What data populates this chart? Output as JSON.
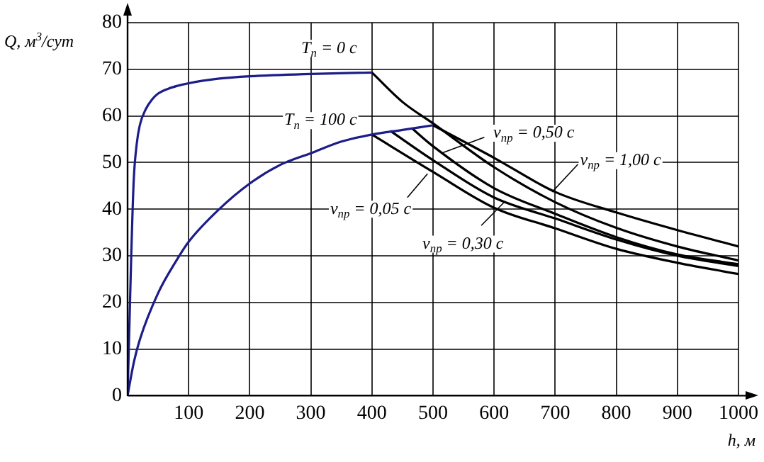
{
  "chart_data": {
    "type": "line",
    "xlabel": "h, м",
    "ylabel": "Q, м$^{3}$/сут",
    "xlim": [
      0,
      1000
    ],
    "ylim": [
      0,
      80
    ],
    "xticks": [
      {
        "value": 0,
        "label": null
      },
      100,
      200,
      300,
      400,
      500,
      600,
      700,
      800,
      900,
      1000
    ],
    "yticks": [
      0,
      10,
      20,
      30,
      40,
      50,
      60,
      70,
      80
    ],
    "grid": true,
    "marker": "none",
    "line_style": "solid",
    "series": [
      {
        "name": "T$_{п}$ = 0 с",
        "color": "#1c1c8a",
        "x": [
          0,
          3,
          6,
          10,
          15,
          20,
          30,
          40,
          50,
          70,
          100,
          150,
          200,
          300,
          400
        ],
        "values": [
          0,
          15,
          30,
          46,
          54,
          58,
          61.5,
          63.5,
          64.8,
          66,
          67,
          68,
          68.5,
          69,
          69.3
        ]
      },
      {
        "name": "T$_{п}$ = 100 с",
        "color": "#1c1c8a",
        "x": [
          0,
          10,
          20,
          50,
          80,
          100,
          150,
          200,
          250,
          300,
          350,
          400,
          450,
          500
        ],
        "values": [
          0,
          7,
          12,
          22,
          29,
          33,
          40,
          45.5,
          49.5,
          52,
          54.5,
          56,
          57,
          58
        ]
      },
      {
        "color": "#000000",
        "x": [
          400,
          450,
          500,
          600,
          700,
          800,
          900,
          1000
        ],
        "values": [
          69.3,
          63,
          58.4,
          49,
          41.5,
          36,
          32,
          29
        ]
      },
      {
        "color": "#000000",
        "x": [
          400,
          500,
          600,
          700,
          800,
          900,
          1000
        ],
        "values": [
          56,
          48,
          40.3,
          35.9,
          31.5,
          28.5,
          26.1
        ]
      },
      {
        "color": "#000000",
        "x": [
          430,
          500,
          600,
          700,
          800,
          900,
          1000
        ],
        "values": [
          56.8,
          50.5,
          42.5,
          38,
          33.5,
          30,
          27.8
        ]
      },
      {
        "color": "#000000",
        "x": [
          465,
          500,
          600,
          700,
          800,
          900,
          1000
        ],
        "values": [
          57.4,
          53.5,
          44.5,
          39,
          34,
          30.3,
          28.2
        ]
      },
      {
        "color": "#000000",
        "x": [
          500,
          600,
          700,
          800,
          900,
          1000
        ],
        "values": [
          58,
          51,
          43.7,
          39.3,
          35.5,
          32
        ]
      }
    ],
    "annotations": [
      {
        "text": "ν$_{пр}$ = 0,05 с",
        "x": 491,
        "y": 47.6
      },
      {
        "text": "ν$_{пр}$ = 0,30 с",
        "x": 618,
        "y": 41.7
      },
      {
        "text": "ν$_{пр}$ = 0,50 с",
        "x": 516,
        "y": 52.1
      },
      {
        "text": "ν$_{пр}$ = 1,00 с",
        "x": 695,
        "y": 43.7
      }
    ]
  }
}
